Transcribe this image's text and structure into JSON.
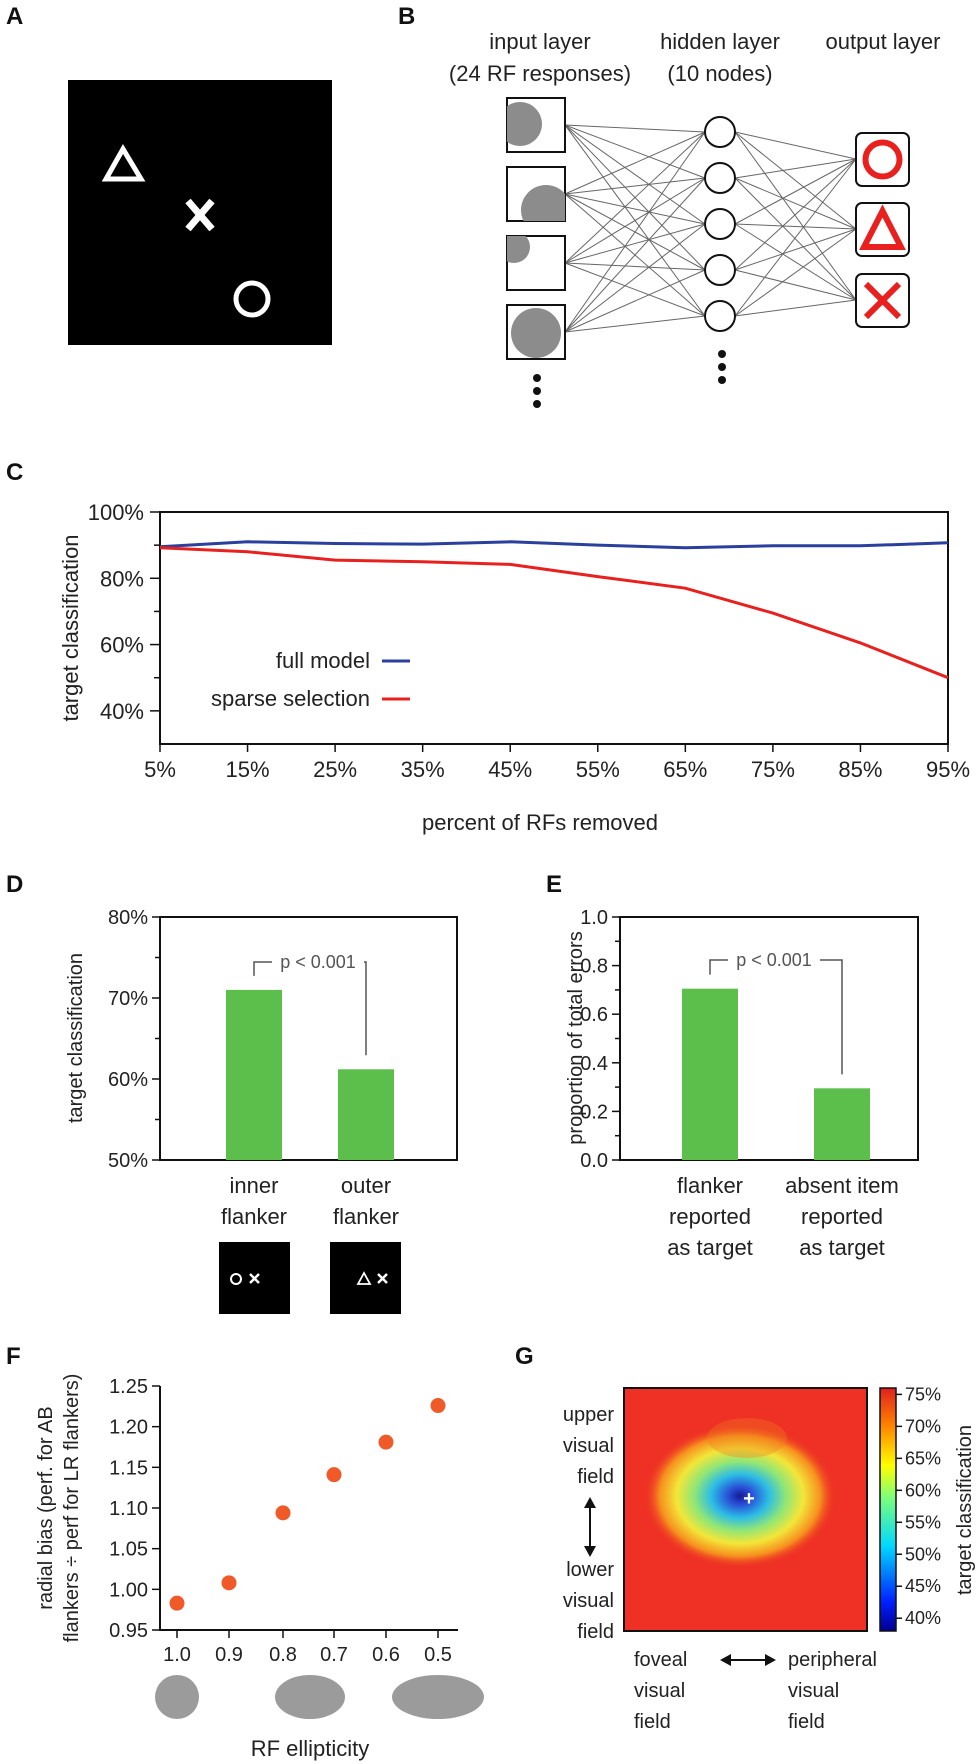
{
  "panels": {
    "A": {
      "label": "A",
      "symbols": [
        "triangle",
        "cross",
        "circle"
      ]
    },
    "B": {
      "label": "B",
      "input_title": "input layer",
      "input_subtitle": "(24 RF responses)",
      "hidden_title": "hidden layer",
      "hidden_subtitle": "(10 nodes)",
      "output_title": "output layer",
      "outputs": [
        "circle",
        "triangle",
        "cross"
      ]
    },
    "C": {
      "label": "C"
    },
    "D": {
      "label": "D",
      "stimuli": [
        "circle-cross",
        "triangle-cross"
      ]
    },
    "E": {
      "label": "E"
    },
    "F": {
      "label": "F",
      "ellipses": [
        "circular-rf",
        "medium-ellipse-rf",
        "wide-ellipse-rf"
      ]
    },
    "G": {
      "label": "G",
      "upper_label": [
        "upper",
        "visual",
        "field"
      ],
      "lower_label": [
        "lower",
        "visual",
        "field"
      ],
      "foveal_label": [
        "foveal",
        "visual",
        "field"
      ],
      "peripheral_label": [
        "peripheral",
        "visual",
        "field"
      ]
    }
  },
  "colors": {
    "blue": "#2a3f9e",
    "red": "#e8211f",
    "green": "#5cbf4c",
    "orange": "#ef5a28",
    "gray": "#9b9b9b"
  },
  "chart_data": [
    {
      "id": "C",
      "type": "line",
      "title": "",
      "xlabel": "percent of RFs removed",
      "ylabel": "target classification",
      "categories": [
        "5%",
        "15%",
        "25%",
        "35%",
        "45%",
        "55%",
        "65%",
        "75%",
        "85%",
        "95%"
      ],
      "x": [
        5,
        15,
        25,
        35,
        45,
        55,
        65,
        75,
        85,
        95
      ],
      "xlim": [
        5,
        95
      ],
      "ylim": [
        30,
        100
      ],
      "yticks": [
        40,
        60,
        80,
        100
      ],
      "ytick_labels": [
        "40%",
        "60%",
        "80%",
        "100%"
      ],
      "series": [
        {
          "name": "full model",
          "color": "#2a3f9e",
          "values": [
            89.5,
            91,
            90.5,
            90.3,
            91,
            90,
            89.2,
            89.8,
            89.8,
            90.7
          ]
        },
        {
          "name": "sparse selection",
          "color": "#e8211f",
          "values": [
            89.2,
            88,
            85.5,
            85,
            84.2,
            80.5,
            77,
            69.5,
            60.5,
            50
          ]
        }
      ]
    },
    {
      "id": "D",
      "type": "bar",
      "ylabel": "target classification",
      "categories": [
        [
          "inner",
          "flanker"
        ],
        [
          "outer",
          "flanker"
        ]
      ],
      "values": [
        71,
        61.2
      ],
      "ylim": [
        50,
        80
      ],
      "yticks": [
        50,
        60,
        70,
        80
      ],
      "ytick_labels": [
        "50%",
        "60%",
        "70%",
        "80%"
      ],
      "annotation": "p < 0.001"
    },
    {
      "id": "E",
      "type": "bar",
      "ylabel": "proportion of total errors",
      "categories": [
        [
          "flanker",
          "reported",
          "as target"
        ],
        [
          "absent item",
          "reported",
          "as target"
        ]
      ],
      "values": [
        0.705,
        0.295
      ],
      "ylim": [
        0,
        1.0
      ],
      "yticks": [
        0,
        0.2,
        0.4,
        0.6,
        0.8,
        1.0
      ],
      "ytick_labels": [
        "0.0",
        "0.2",
        "0.4",
        "0.6",
        "0.8",
        "1.0"
      ],
      "annotation": "p < 0.001"
    },
    {
      "id": "F",
      "type": "scatter",
      "xlabel": "RF ellipticity",
      "ylabel_lines": [
        "radial bias (perf. for AB",
        "flankers ÷ perf for LR flankers)"
      ],
      "x_labels": [
        "1.0",
        "0.9",
        "0.8",
        "0.7",
        "0.6",
        "0.5"
      ],
      "values": [
        0.983,
        1.008,
        1.094,
        1.141,
        1.181,
        1.226
      ],
      "ylim": [
        0.95,
        1.25
      ],
      "yticks": [
        0.95,
        1.0,
        1.05,
        1.1,
        1.15,
        1.2,
        1.25
      ],
      "ytick_labels": [
        "0.95",
        "1.00",
        "1.05",
        "1.10",
        "1.15",
        "1.20",
        "1.25"
      ]
    },
    {
      "id": "G",
      "type": "heatmap",
      "colorbar_label": "target classification",
      "colorbar_range": [
        38,
        76
      ],
      "colorbar_ticks": [
        40,
        45,
        50,
        55,
        60,
        65,
        70,
        75
      ],
      "colorbar_tick_labels": [
        "40%",
        "45%",
        "50%",
        "55%",
        "60%",
        "65%",
        "70%",
        "75%"
      ],
      "background_value": 73,
      "minimum_value": 40,
      "minimum_marker": "+"
    }
  ]
}
